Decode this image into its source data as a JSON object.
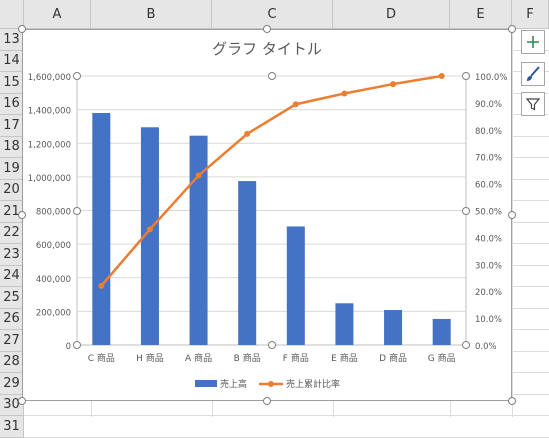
{
  "columns": [
    "A",
    "B",
    "C",
    "D",
    "E",
    "F"
  ],
  "rows": [
    "13",
    "14",
    "15",
    "16",
    "17",
    "18",
    "19",
    "20",
    "21",
    "22",
    "23",
    "24",
    "25",
    "26",
    "27",
    "28",
    "29",
    "30",
    "31"
  ],
  "side_buttons": [
    {
      "name": "chart-elements-button",
      "icon": "plus-icon"
    },
    {
      "name": "chart-styles-button",
      "icon": "brush-icon"
    },
    {
      "name": "chart-filters-button",
      "icon": "filter-icon"
    }
  ],
  "colors": {
    "bar": "#4472c4",
    "line": "#ed7d31",
    "text": "#595959",
    "title": "#595959",
    "grid": "#d9d9d9"
  },
  "chart_data": {
    "type": "bar",
    "title": "グラフ タイトル",
    "categories": [
      "C 商品",
      "H 商品",
      "A 商品",
      "B 商品",
      "F 商品",
      "E 商品",
      "D 商品",
      "G 商品"
    ],
    "series": [
      {
        "name": "売上高",
        "type": "bar",
        "axis": "primary",
        "values": [
          1380000,
          1295000,
          1245000,
          975000,
          705000,
          248000,
          208000,
          155000
        ]
      },
      {
        "name": "売上累計比率",
        "type": "line",
        "axis": "secondary",
        "values": [
          0.22,
          0.43,
          0.63,
          0.785,
          0.895,
          0.935,
          0.97,
          1.0
        ]
      }
    ],
    "y_primary": {
      "min": 0,
      "max": 1600000,
      "step": 200000,
      "tick_labels": [
        "0",
        "200,000",
        "400,000",
        "600,000",
        "800,000",
        "1,000,000",
        "1,200,000",
        "1,400,000",
        "1,600,000"
      ]
    },
    "y_secondary": {
      "min": 0,
      "max": 1,
      "step": 0.1,
      "tick_labels": [
        "0.0%",
        "10.0%",
        "20.0%",
        "30.0%",
        "40.0%",
        "50.0%",
        "60.0%",
        "70.0%",
        "80.0%",
        "90.0%",
        "100.0%"
      ]
    },
    "grid": true,
    "legend_position": "bottom"
  }
}
